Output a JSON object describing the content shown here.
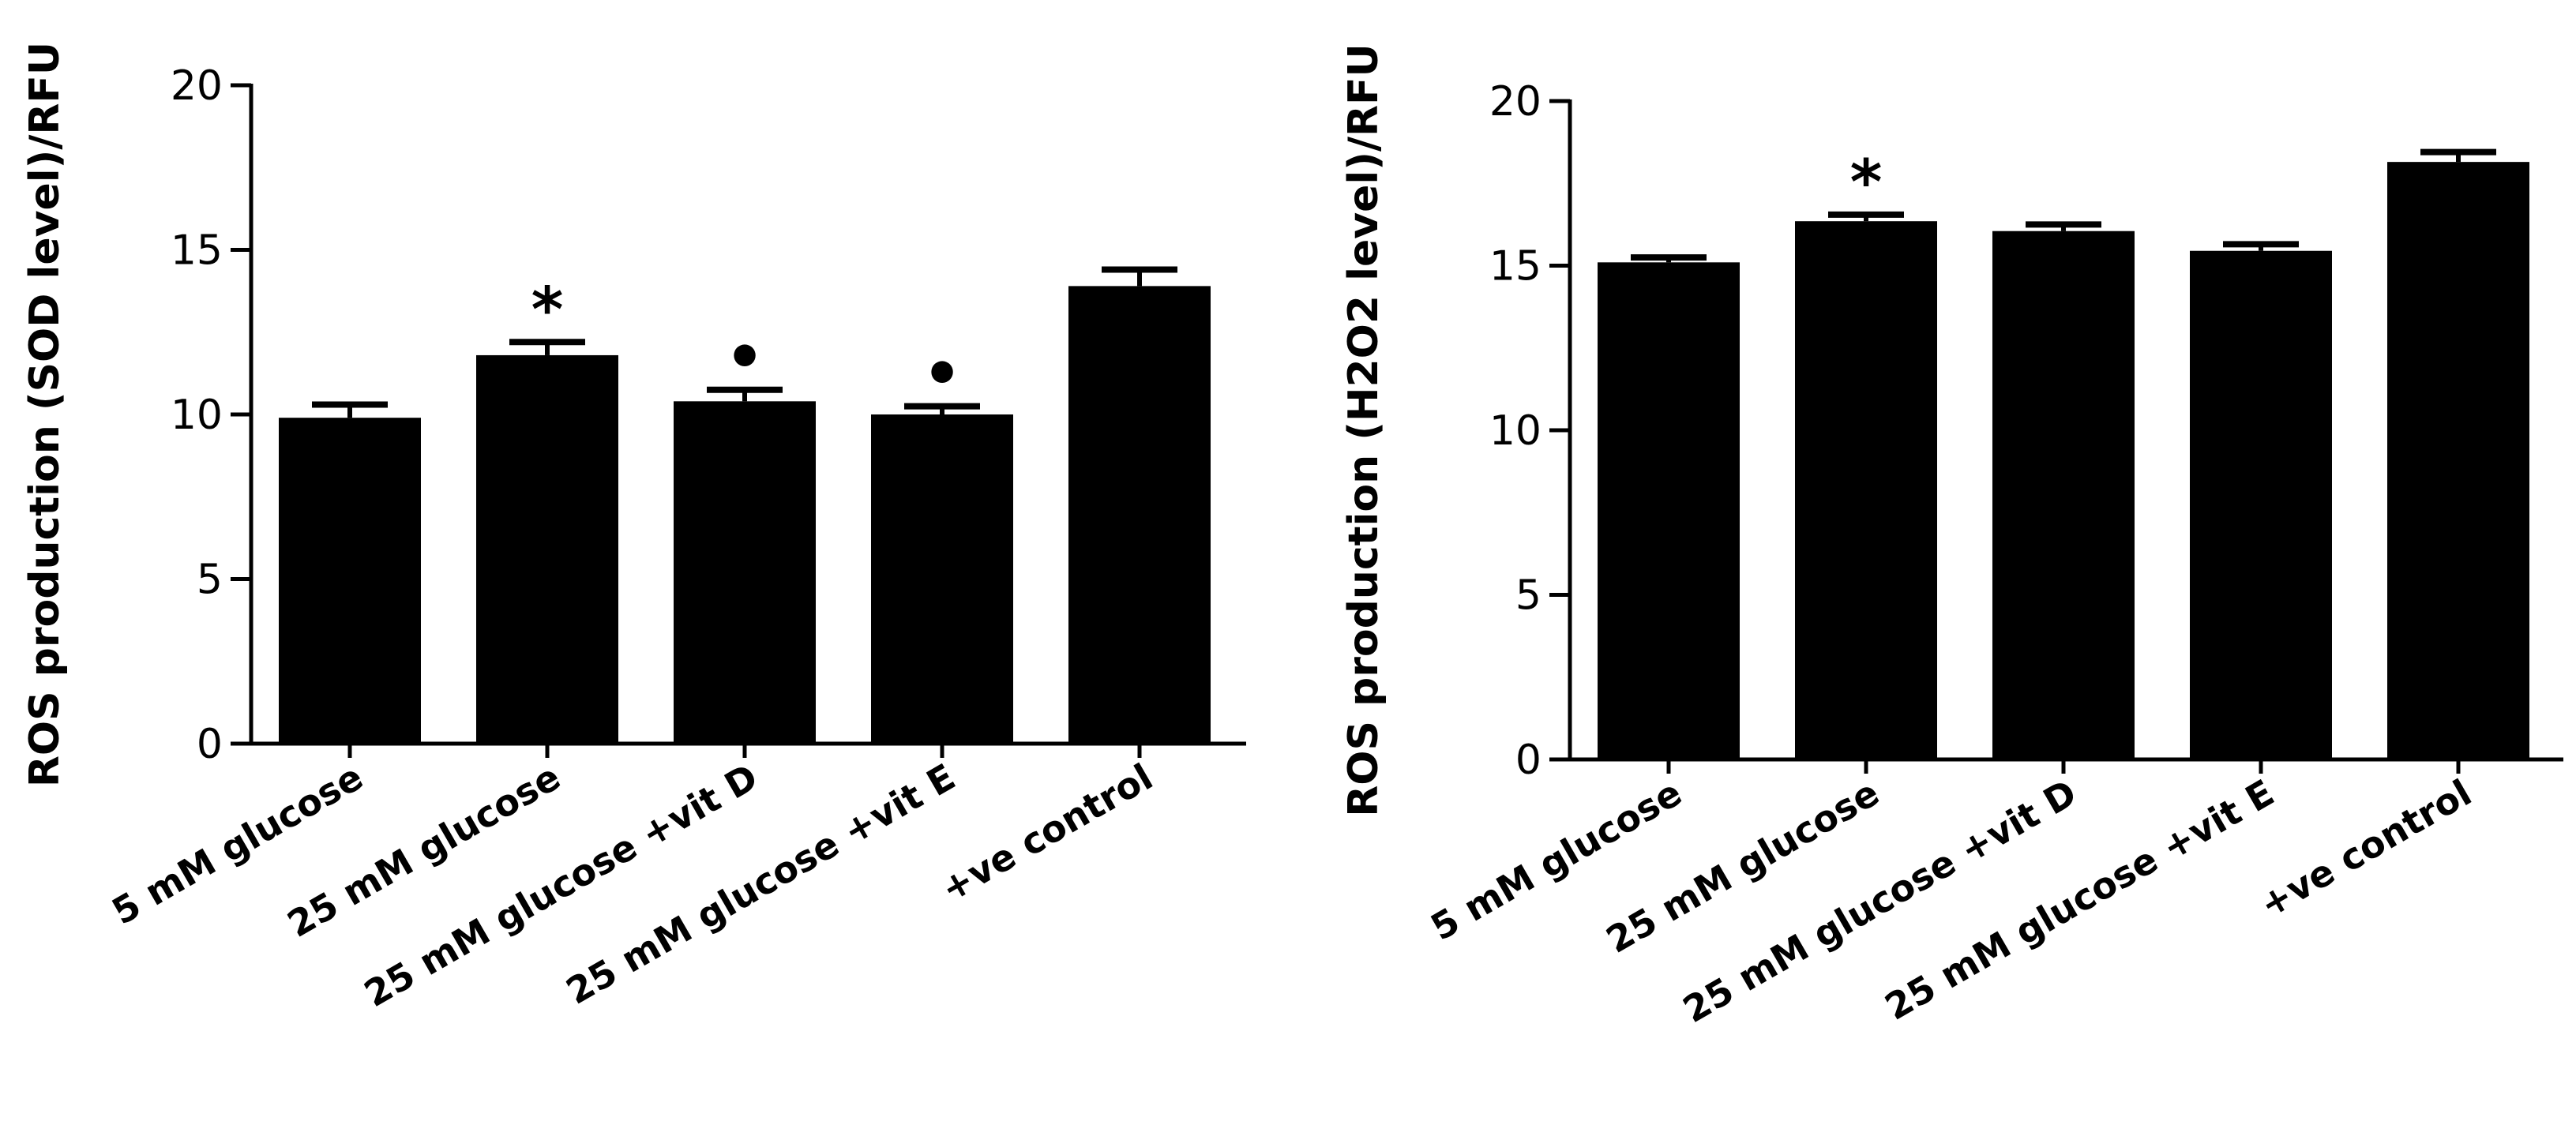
{
  "chart_data": [
    {
      "type": "bar",
      "title": "",
      "xlabel": "",
      "ylabel": "ROS production (SOD level)/RFU",
      "ylim": [
        0,
        20
      ],
      "yticks": [
        0,
        5,
        10,
        15,
        20
      ],
      "grid": false,
      "categories": [
        "5 mM glucose",
        "25 mM glucose",
        "25 mM glucose +vit D",
        "25 mM glucose +vit E",
        "+ve control"
      ],
      "values": [
        9.9,
        11.8,
        10.4,
        10.0,
        13.9
      ],
      "errors": [
        0.4,
        0.4,
        0.35,
        0.25,
        0.5
      ],
      "annotations": [
        "",
        "*",
        "•",
        "•",
        ""
      ],
      "bar_color": "#000000"
    },
    {
      "type": "bar",
      "title": "",
      "xlabel": "",
      "ylabel": "ROS production (H2O2 level)/RFU",
      "ylim": [
        0,
        20
      ],
      "yticks": [
        0,
        5,
        10,
        15,
        20
      ],
      "grid": false,
      "categories": [
        "5 mM glucose",
        "25 mM glucose",
        "25 mM glucose  +vit D",
        "25 mM glucose +vit E",
        "+ve control"
      ],
      "values": [
        15.1,
        16.35,
        16.05,
        15.45,
        18.15
      ],
      "errors": [
        0.15,
        0.2,
        0.2,
        0.2,
        0.3
      ],
      "annotations": [
        "",
        "*",
        "",
        "",
        ""
      ],
      "bar_color": "#000000"
    }
  ]
}
